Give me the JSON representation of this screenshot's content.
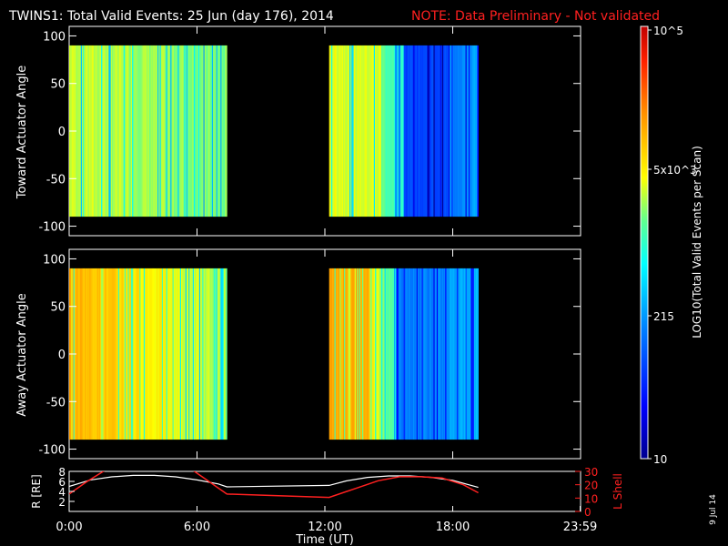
{
  "header": {
    "title": "TWINS1: Total Valid Events: 25 Jun (day 176), 2014",
    "note": "NOTE: Data Preliminary - Not validated"
  },
  "date_stamp": "9 Jul 14",
  "chart_data": [
    {
      "type": "heatmap",
      "ylabel": "Toward Actuator Angle",
      "ylim": [
        -110,
        110
      ],
      "yticks": [
        "100",
        "50",
        "0",
        "-50",
        "-100"
      ],
      "xlim_hours": [
        0,
        24
      ],
      "data_blocks_hours": [
        [
          0.0,
          7.4
        ],
        [
          12.2,
          19.2
        ]
      ],
      "note": "color varies with time (vertical stripes): mostly yellow-green in the first block, yellow then blue in the second block"
    },
    {
      "type": "heatmap",
      "ylabel": "Away Actuator Angle",
      "ylim": [
        -110,
        110
      ],
      "yticks": [
        "100",
        "50",
        "0",
        "-50",
        "-100"
      ],
      "xlim_hours": [
        0,
        24
      ],
      "data_blocks_hours": [
        [
          0.0,
          7.4
        ],
        [
          12.2,
          19.2
        ]
      ],
      "note": "first block orange to green, second block orange then blue"
    },
    {
      "type": "line",
      "ylabel_left": "R [RE]",
      "ylabel_right": "L Shell",
      "yticks_left": [
        "8",
        "6",
        "4",
        "2"
      ],
      "yticks_right": [
        "30",
        "20",
        "10",
        "0"
      ],
      "ylim_left": [
        0,
        8
      ],
      "ylim_right": [
        0,
        30
      ],
      "xlabel": "Time (UT)",
      "xticks": [
        "0:00",
        "6:00",
        "12:00",
        "18:00",
        "23:59"
      ],
      "series": [
        {
          "name": "R",
          "color": "#ffffff",
          "x": [
            0,
            1,
            2,
            3,
            4,
            5,
            6,
            7,
            7.4,
            12.2,
            13,
            14,
            15,
            16,
            17,
            18,
            19.2
          ],
          "values": [
            5.0,
            6.3,
            6.9,
            7.2,
            7.2,
            6.9,
            6.3,
            5.5,
            4.9,
            5.2,
            6.1,
            6.8,
            7.1,
            7.1,
            6.8,
            6.2,
            4.8
          ]
        },
        {
          "name": "L Shell",
          "color": "#ff2020",
          "x": [
            0,
            0.8,
            1.8,
            5.7,
            7.4,
            12.2,
            13.5,
            14.5,
            15.5,
            16.5,
            17.5,
            18.5,
            19.2
          ],
          "values": [
            13,
            22,
            32,
            32,
            13,
            10.5,
            17.5,
            23,
            26,
            26,
            25,
            20,
            14
          ]
        }
      ]
    }
  ],
  "colorbar": {
    "label": "LOG10(Total Valid Events per Scan)",
    "ticks": [
      "10",
      "215",
      "5x10^3",
      "10^5"
    ]
  }
}
